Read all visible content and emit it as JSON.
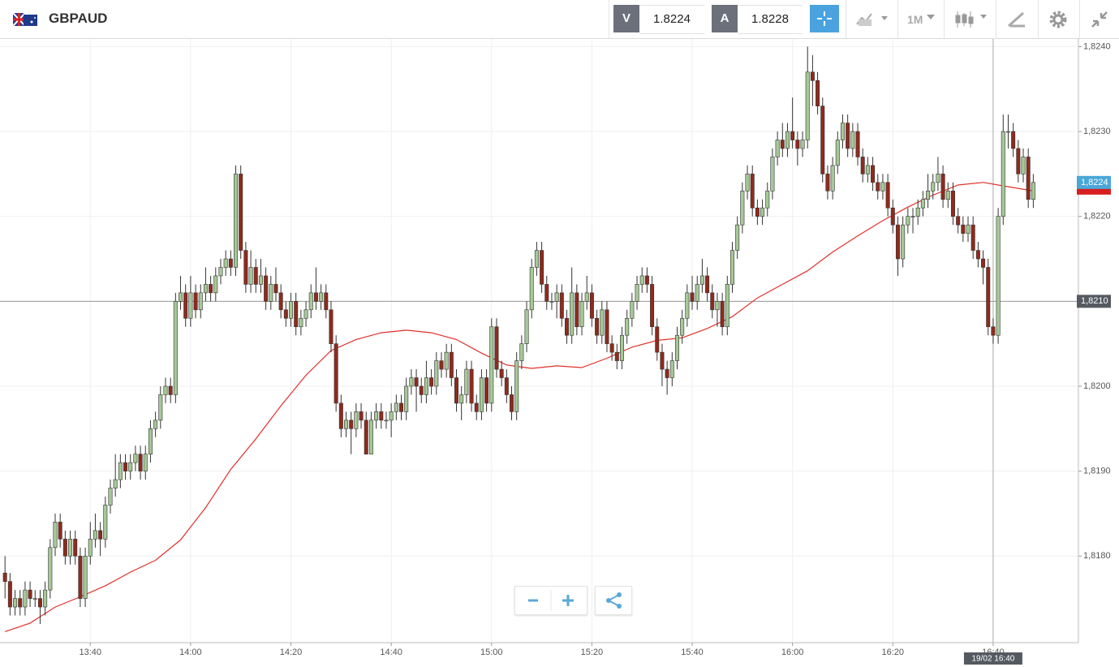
{
  "header": {
    "symbol": "GBPAUD",
    "sell_label": "V",
    "sell_price": 1.8224,
    "buy_label": "A",
    "buy_price": 1.8228,
    "timeframe": "1M"
  },
  "chart_data": {
    "type": "candlestick",
    "x": [
      "13:23",
      "13:24",
      "13:25",
      "13:26",
      "13:27",
      "13:28",
      "13:29",
      "13:30",
      "13:31",
      "13:32",
      "13:33",
      "13:34",
      "13:35",
      "13:36",
      "13:37",
      "13:38",
      "13:39",
      "13:40",
      "13:41",
      "13:42",
      "13:43",
      "13:44",
      "13:45",
      "13:46",
      "13:47",
      "13:48",
      "13:49",
      "13:50",
      "13:51",
      "13:52",
      "13:53",
      "13:54",
      "13:55",
      "13:56",
      "13:57",
      "13:58",
      "13:59",
      "14:00",
      "14:01",
      "14:02",
      "14:03",
      "14:04",
      "14:05",
      "14:06",
      "14:07",
      "14:08",
      "14:09",
      "14:10",
      "14:11",
      "14:12",
      "14:13",
      "14:14",
      "14:15",
      "14:16",
      "14:17",
      "14:18",
      "14:19",
      "14:20",
      "14:21",
      "14:22",
      "14:23",
      "14:24",
      "14:25",
      "14:26",
      "14:27",
      "14:28",
      "14:29",
      "14:30",
      "14:31",
      "14:32",
      "14:33",
      "14:34",
      "14:35",
      "14:36",
      "14:37",
      "14:38",
      "14:39",
      "14:40",
      "14:41",
      "14:42",
      "14:43",
      "14:44",
      "14:45",
      "14:46",
      "14:47",
      "14:48",
      "14:49",
      "14:50",
      "14:51",
      "14:52",
      "14:53",
      "14:54",
      "14:55",
      "14:56",
      "14:57",
      "14:58",
      "14:59",
      "15:00",
      "15:01",
      "15:02",
      "15:03",
      "15:04",
      "15:05",
      "15:06",
      "15:07",
      "15:08",
      "15:09",
      "15:10",
      "15:11",
      "15:12",
      "15:13",
      "15:14",
      "15:15",
      "15:16",
      "15:17",
      "15:18",
      "15:19",
      "15:20",
      "15:21",
      "15:22",
      "15:23",
      "15:24",
      "15:25",
      "15:26",
      "15:27",
      "15:28",
      "15:29",
      "15:30",
      "15:31",
      "15:32",
      "15:33",
      "15:34",
      "15:35",
      "15:36",
      "15:37",
      "15:38",
      "15:39",
      "15:40",
      "15:41",
      "15:42",
      "15:43",
      "15:44",
      "15:45",
      "15:46",
      "15:47",
      "15:48",
      "15:49",
      "15:50",
      "15:51",
      "15:52",
      "15:53",
      "15:54",
      "15:55",
      "15:56",
      "15:57",
      "15:58",
      "15:59",
      "16:00",
      "16:01",
      "16:02",
      "16:03",
      "16:04",
      "16:05",
      "16:06",
      "16:07",
      "16:08",
      "16:09",
      "16:10",
      "16:11",
      "16:12",
      "16:13",
      "16:14",
      "16:15",
      "16:16",
      "16:17",
      "16:18",
      "16:19",
      "16:20",
      "16:21",
      "16:22",
      "16:23",
      "16:24",
      "16:25",
      "16:26",
      "16:27",
      "16:28",
      "16:29",
      "16:30",
      "16:31",
      "16:32",
      "16:33",
      "16:34",
      "16:35",
      "16:36",
      "16:37",
      "16:38",
      "16:39",
      "16:40",
      "16:41",
      "16:42",
      "16:43",
      "16:44",
      "16:45",
      "16:46",
      "16:47",
      "16:48"
    ],
    "open": [
      1.8178,
      1.8177,
      1.8174,
      1.8175,
      1.8174,
      1.8176,
      1.8175,
      1.8175,
      1.8174,
      1.8176,
      1.8181,
      1.8184,
      1.8182,
      1.818,
      1.8182,
      1.818,
      1.8175,
      1.818,
      1.8182,
      1.8183,
      1.8182,
      1.8186,
      1.8188,
      1.8189,
      1.8191,
      1.819,
      1.8191,
      1.8192,
      1.819,
      1.8192,
      1.8195,
      1.8196,
      1.8199,
      1.82,
      1.8199,
      1.821,
      1.8211,
      1.8208,
      1.8211,
      1.8209,
      1.8211,
      1.8212,
      1.8211,
      1.8213,
      1.8214,
      1.8215,
      1.8214,
      1.8225,
      1.8216,
      1.8212,
      1.8214,
      1.8212,
      1.8213,
      1.821,
      1.8212,
      1.8211,
      1.8209,
      1.8208,
      1.821,
      1.8207,
      1.8208,
      1.8209,
      1.8211,
      1.821,
      1.8211,
      1.8209,
      1.8205,
      1.8198,
      1.8195,
      1.8196,
      1.8195,
      1.8197,
      1.8196,
      1.8192,
      1.8196,
      1.8197,
      1.8196,
      1.8196,
      1.8197,
      1.8198,
      1.8197,
      1.82,
      1.8201,
      1.82,
      1.8199,
      1.8201,
      1.82,
      1.8203,
      1.8202,
      1.8204,
      1.8201,
      1.8198,
      1.8199,
      1.8202,
      1.8198,
      1.8197,
      1.8201,
      1.8198,
      1.8207,
      1.8202,
      1.8201,
      1.8199,
      1.8197,
      1.8203,
      1.8205,
      1.8209,
      1.8214,
      1.8216,
      1.8212,
      1.821,
      1.821,
      1.8211,
      1.8208,
      1.8206,
      1.8211,
      1.8207,
      1.821,
      1.8211,
      1.8208,
      1.8206,
      1.8209,
      1.8205,
      1.8204,
      1.8203,
      1.8206,
      1.8208,
      1.821,
      1.8212,
      1.8213,
      1.8212,
      1.8207,
      1.8204,
      1.8202,
      1.8201,
      1.8203,
      1.8206,
      1.8208,
      1.8211,
      1.821,
      1.8212,
      1.8213,
      1.8211,
      1.8209,
      1.821,
      1.8207,
      1.8212,
      1.8216,
      1.8219,
      1.8223,
      1.8225,
      1.8221,
      1.822,
      1.8221,
      1.8223,
      1.8227,
      1.8229,
      1.8228,
      1.823,
      1.8229,
      1.8228,
      1.8229,
      1.8237,
      1.8236,
      1.8233,
      1.8225,
      1.8223,
      1.8226,
      1.8229,
      1.8231,
      1.8228,
      1.823,
      1.8227,
      1.8225,
      1.8226,
      1.8224,
      1.8223,
      1.8224,
      1.8221,
      1.8219,
      1.8215,
      1.8219,
      1.822,
      1.822,
      1.8221,
      1.8222,
      1.8223,
      1.8224,
      1.8225,
      1.8222,
      1.8223,
      1.822,
      1.8219,
      1.8218,
      1.8219,
      1.8216,
      1.8215,
      1.8214,
      1.8207,
      1.8206,
      1.822,
      1.823,
      1.823,
      1.8228,
      1.8225,
      1.8227,
      1.8222
    ],
    "high": [
      1.818,
      1.8178,
      1.8176,
      1.8176,
      1.8177,
      1.8177,
      1.8176,
      1.8176,
      1.8177,
      1.8182,
      1.8185,
      1.8185,
      1.8183,
      1.8183,
      1.8183,
      1.8181,
      1.8181,
      1.8184,
      1.8185,
      1.8184,
      1.8187,
      1.8189,
      1.8192,
      1.8192,
      1.8192,
      1.8192,
      1.8193,
      1.8193,
      1.8193,
      1.8196,
      1.8197,
      1.82,
      1.8201,
      1.8201,
      1.8211,
      1.8213,
      1.8212,
      1.8213,
      1.8212,
      1.8212,
      1.8214,
      1.8213,
      1.8214,
      1.8215,
      1.8216,
      1.8216,
      1.8226,
      1.8226,
      1.8217,
      1.8216,
      1.8215,
      1.8215,
      1.8214,
      1.8213,
      1.8214,
      1.8212,
      1.821,
      1.8211,
      1.8211,
      1.8209,
      1.821,
      1.8212,
      1.8214,
      1.8212,
      1.8212,
      1.821,
      1.8206,
      1.8199,
      1.8197,
      1.8197,
      1.8198,
      1.8198,
      1.8197,
      1.8197,
      1.8198,
      1.8198,
      1.8197,
      1.8198,
      1.8199,
      1.8199,
      1.8201,
      1.8202,
      1.8202,
      1.8201,
      1.8203,
      1.8202,
      1.8204,
      1.8204,
      1.8205,
      1.8205,
      1.8202,
      1.82,
      1.8203,
      1.8203,
      1.8199,
      1.8202,
      1.8202,
      1.8208,
      1.8208,
      1.8203,
      1.8202,
      1.82,
      1.8204,
      1.8206,
      1.821,
      1.8215,
      1.8217,
      1.8217,
      1.8213,
      1.8211,
      1.8212,
      1.8212,
      1.8209,
      1.8214,
      1.8212,
      1.8211,
      1.8213,
      1.8212,
      1.8209,
      1.821,
      1.821,
      1.8206,
      1.8205,
      1.8207,
      1.8209,
      1.8211,
      1.8213,
      1.8214,
      1.8214,
      1.8213,
      1.8208,
      1.8205,
      1.8203,
      1.8204,
      1.8207,
      1.8209,
      1.8212,
      1.8213,
      1.8213,
      1.8215,
      1.8214,
      1.8212,
      1.8211,
      1.8211,
      1.8213,
      1.8217,
      1.822,
      1.8224,
      1.8226,
      1.8226,
      1.8222,
      1.8222,
      1.8224,
      1.8228,
      1.823,
      1.8231,
      1.8231,
      1.8234,
      1.823,
      1.823,
      1.824,
      1.8239,
      1.8237,
      1.8234,
      1.8226,
      1.8227,
      1.823,
      1.8232,
      1.8232,
      1.8231,
      1.8231,
      1.8228,
      1.8227,
      1.8227,
      1.8225,
      1.8225,
      1.8225,
      1.8222,
      1.822,
      1.822,
      1.8221,
      1.8221,
      1.8222,
      1.8223,
      1.8225,
      1.8225,
      1.8227,
      1.8226,
      1.8224,
      1.8224,
      1.8221,
      1.822,
      1.822,
      1.822,
      1.8217,
      1.8216,
      1.8215,
      1.8208,
      1.8221,
      1.8232,
      1.8232,
      1.8231,
      1.8229,
      1.8228,
      1.8228,
      1.8225
    ],
    "low": [
      1.8175,
      1.8173,
      1.8173,
      1.8173,
      1.8173,
      1.8174,
      1.8174,
      1.8172,
      1.8173,
      1.8175,
      1.818,
      1.8181,
      1.8179,
      1.8179,
      1.8179,
      1.8174,
      1.8174,
      1.8179,
      1.8181,
      1.818,
      1.8181,
      1.8185,
      1.8187,
      1.8188,
      1.8189,
      1.8189,
      1.819,
      1.8189,
      1.8189,
      1.8191,
      1.8194,
      1.8195,
      1.8198,
      1.8198,
      1.8198,
      1.8209,
      1.8207,
      1.8207,
      1.8208,
      1.8208,
      1.821,
      1.821,
      1.821,
      1.8212,
      1.8213,
      1.8213,
      1.8213,
      1.8215,
      1.8211,
      1.8211,
      1.8211,
      1.8211,
      1.8209,
      1.8209,
      1.821,
      1.8208,
      1.8207,
      1.8207,
      1.8206,
      1.8206,
      1.8207,
      1.8208,
      1.8209,
      1.8209,
      1.8208,
      1.8204,
      1.8197,
      1.8194,
      1.8194,
      1.8192,
      1.8194,
      1.8195,
      1.8192,
      1.8192,
      1.8195,
      1.8195,
      1.8195,
      1.8194,
      1.8196,
      1.8196,
      1.8196,
      1.8199,
      1.8197,
      1.8198,
      1.8198,
      1.8199,
      1.8199,
      1.8201,
      1.8201,
      1.82,
      1.8197,
      1.8196,
      1.8198,
      1.8197,
      1.8196,
      1.8196,
      1.8197,
      1.8197,
      1.8201,
      1.82,
      1.8198,
      1.8196,
      1.8196,
      1.8202,
      1.8204,
      1.8208,
      1.8213,
      1.8211,
      1.8209,
      1.8209,
      1.8208,
      1.8207,
      1.8205,
      1.8205,
      1.8206,
      1.8206,
      1.8209,
      1.8207,
      1.8205,
      1.8205,
      1.8204,
      1.8203,
      1.8202,
      1.8202,
      1.8205,
      1.8207,
      1.8209,
      1.8211,
      1.8211,
      1.8206,
      1.8203,
      1.82,
      1.8199,
      1.82,
      1.8202,
      1.8205,
      1.8207,
      1.8209,
      1.8209,
      1.8211,
      1.821,
      1.8208,
      1.8207,
      1.8206,
      1.8206,
      1.8211,
      1.8215,
      1.8218,
      1.8222,
      1.822,
      1.8219,
      1.8219,
      1.822,
      1.8222,
      1.8226,
      1.8227,
      1.8227,
      1.8228,
      1.8226,
      1.8227,
      1.8228,
      1.8233,
      1.8232,
      1.8224,
      1.8222,
      1.8222,
      1.8225,
      1.8228,
      1.8227,
      1.8227,
      1.8226,
      1.8224,
      1.8224,
      1.8223,
      1.8222,
      1.8222,
      1.822,
      1.8218,
      1.8213,
      1.8214,
      1.8218,
      1.8218,
      1.8219,
      1.822,
      1.8221,
      1.8222,
      1.8223,
      1.8221,
      1.8221,
      1.8219,
      1.8218,
      1.8217,
      1.8217,
      1.8215,
      1.8214,
      1.8212,
      1.8206,
      1.8205,
      1.8205,
      1.8219,
      1.8228,
      1.8227,
      1.8224,
      1.8224,
      1.8221,
      1.8221
    ],
    "close": [
      1.8177,
      1.8174,
      1.8175,
      1.8174,
      1.8176,
      1.8175,
      1.8175,
      1.8174,
      1.8176,
      1.8181,
      1.8184,
      1.8182,
      1.818,
      1.8182,
      1.818,
      1.8175,
      1.818,
      1.8182,
      1.8183,
      1.8182,
      1.8186,
      1.8188,
      1.8189,
      1.8191,
      1.819,
      1.8191,
      1.8192,
      1.819,
      1.8192,
      1.8195,
      1.8196,
      1.8199,
      1.82,
      1.8199,
      1.821,
      1.8211,
      1.8208,
      1.8211,
      1.8209,
      1.8211,
      1.8212,
      1.8211,
      1.8213,
      1.8214,
      1.8215,
      1.8214,
      1.8225,
      1.8216,
      1.8212,
      1.8214,
      1.8212,
      1.8213,
      1.821,
      1.8212,
      1.8211,
      1.8209,
      1.8208,
      1.821,
      1.8207,
      1.8208,
      1.8209,
      1.8211,
      1.821,
      1.8211,
      1.8209,
      1.8205,
      1.8198,
      1.8195,
      1.8196,
      1.8195,
      1.8197,
      1.8196,
      1.8192,
      1.8196,
      1.8197,
      1.8196,
      1.8196,
      1.8197,
      1.8198,
      1.8197,
      1.82,
      1.8201,
      1.82,
      1.8199,
      1.8201,
      1.82,
      1.8203,
      1.8202,
      1.8204,
      1.8201,
      1.8198,
      1.8199,
      1.8202,
      1.8198,
      1.8197,
      1.8201,
      1.8198,
      1.8207,
      1.8202,
      1.8201,
      1.8199,
      1.8197,
      1.8203,
      1.8205,
      1.8209,
      1.8214,
      1.8216,
      1.8212,
      1.821,
      1.821,
      1.8211,
      1.8208,
      1.8206,
      1.8211,
      1.8207,
      1.821,
      1.8211,
      1.8208,
      1.8206,
      1.8209,
      1.8205,
      1.8204,
      1.8203,
      1.8206,
      1.8208,
      1.821,
      1.8212,
      1.8213,
      1.8212,
      1.8207,
      1.8204,
      1.8202,
      1.8201,
      1.8203,
      1.8206,
      1.8208,
      1.8211,
      1.821,
      1.8212,
      1.8213,
      1.8211,
      1.8209,
      1.821,
      1.8207,
      1.8212,
      1.8216,
      1.8219,
      1.8223,
      1.8225,
      1.8221,
      1.822,
      1.8221,
      1.8223,
      1.8227,
      1.8229,
      1.8228,
      1.823,
      1.8229,
      1.8228,
      1.8229,
      1.8237,
      1.8236,
      1.8233,
      1.8225,
      1.8223,
      1.8226,
      1.8229,
      1.8231,
      1.8228,
      1.823,
      1.8227,
      1.8225,
      1.8226,
      1.8224,
      1.8223,
      1.8224,
      1.8221,
      1.8219,
      1.8215,
      1.8219,
      1.822,
      1.822,
      1.8221,
      1.8222,
      1.8223,
      1.8224,
      1.8225,
      1.8222,
      1.8223,
      1.822,
      1.8219,
      1.8218,
      1.8219,
      1.8216,
      1.8215,
      1.8214,
      1.8207,
      1.8206,
      1.822,
      1.823,
      1.823,
      1.8228,
      1.8225,
      1.8227,
      1.8222,
      1.8224
    ],
    "up_color": "#a5c997",
    "down_color": "#8e2b1d",
    "wick_color": "#333333",
    "moving_average": {
      "color": "#e0302a",
      "x": [
        "13:23",
        "13:28",
        "13:33",
        "13:38",
        "13:43",
        "13:48",
        "13:53",
        "13:58",
        "14:03",
        "14:08",
        "14:13",
        "14:18",
        "14:23",
        "14:28",
        "14:33",
        "14:38",
        "14:43",
        "14:48",
        "14:53",
        "14:58",
        "15:03",
        "15:08",
        "15:13",
        "15:18",
        "15:23",
        "15:28",
        "15:33",
        "15:38",
        "15:43",
        "15:48",
        "15:53",
        "15:58",
        "16:03",
        "16:08",
        "16:13",
        "16:18",
        "16:23",
        "16:28",
        "16:33",
        "16:38",
        "16:43",
        "16:48"
      ],
      "values": [
        1.81711,
        1.81721,
        1.8174,
        1.81752,
        1.81765,
        1.81781,
        1.81795,
        1.81819,
        1.81857,
        1.81902,
        1.81938,
        1.81977,
        1.82013,
        1.82042,
        1.82055,
        1.82063,
        1.82066,
        1.82063,
        1.82055,
        1.82039,
        1.82025,
        1.82021,
        1.82024,
        1.82022,
        1.82033,
        1.82046,
        1.82054,
        1.82057,
        1.82068,
        1.82082,
        1.82104,
        1.8212,
        1.82136,
        1.82158,
        1.82177,
        1.82195,
        1.82211,
        1.82225,
        1.82237,
        1.8224,
        1.82235,
        1.8223
      ]
    },
    "xlim": [
      "13:22",
      "16:57"
    ],
    "xticks": [
      "13:40",
      "14:00",
      "14:20",
      "14:40",
      "15:00",
      "15:20",
      "15:40",
      "16:00",
      "16:20",
      "16:40"
    ],
    "ylim": [
      1.81698,
      1.82409
    ],
    "yticks": [
      {
        "value": 1.818,
        "label": "1,8180"
      },
      {
        "value": 1.819,
        "label": "1,8190"
      },
      {
        "value": 1.82,
        "label": "1,8200"
      },
      {
        "value": 1.821,
        "label": "1,8210"
      },
      {
        "value": 1.822,
        "label": "1,8220"
      },
      {
        "value": 1.823,
        "label": "1,8230"
      },
      {
        "value": 1.824,
        "label": "1,8240"
      }
    ],
    "grid": true,
    "last_price": {
      "value": 1.8224,
      "label": "1,8224"
    },
    "crosshair": {
      "price": {
        "value": 1.821,
        "label": "1,8210"
      },
      "time": {
        "value": "16:40",
        "label": "19/02 16:40"
      }
    }
  }
}
